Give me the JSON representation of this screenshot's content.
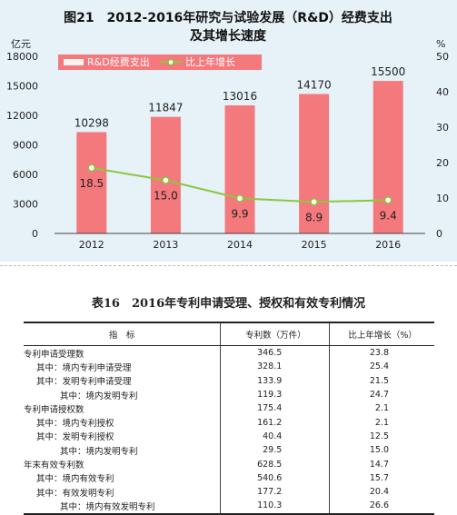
{
  "chart_data": {
    "type": "bar+line",
    "title_line1": "图21　2012-2016年研究与试验发展（R&D）经费支出",
    "title_line2": "及其增长速度",
    "y_left_unit": "亿元",
    "y_right_unit": "%",
    "y_left_ticks": [
      "0",
      "3000",
      "6000",
      "9000",
      "12000",
      "15000",
      "18000"
    ],
    "y_right_ticks": [
      "0",
      "10",
      "20",
      "30",
      "40",
      "50"
    ],
    "ylim_left": [
      0,
      18000
    ],
    "ylim_right": [
      0,
      50
    ],
    "categories": [
      "2012",
      "2013",
      "2014",
      "2015",
      "2016"
    ],
    "series": [
      {
        "name": "R&D经费支出",
        "type": "bar",
        "axis": "left",
        "color": "#f4797d",
        "values": [
          10298,
          11847,
          13016,
          14170,
          15500
        ],
        "labels": [
          "10298",
          "11847",
          "13016",
          "14170",
          "15500"
        ]
      },
      {
        "name": "比上年增长",
        "type": "line",
        "axis": "right",
        "color": "#8cc63f",
        "values": [
          18.5,
          15.0,
          9.9,
          8.9,
          9.4
        ],
        "labels": [
          "18.5",
          "15.0",
          "9.9",
          "8.9",
          "9.4"
        ]
      }
    ],
    "legend_position": "top-left"
  },
  "table": {
    "title": "表16　2016年专利申请受理、授权和有效专利情况",
    "headers": [
      "指　标",
      "专利数（万件）",
      "比上年增长（%）"
    ],
    "rows": [
      {
        "label": "专利申请受理数",
        "indent": 0,
        "count": "346.5",
        "growth": "23.8"
      },
      {
        "label": "其中：境内专利申请受理",
        "indent": 1,
        "count": "328.1",
        "growth": "25.4"
      },
      {
        "label": "其中：发明专利申请受理",
        "indent": 1,
        "count": "133.9",
        "growth": "21.5"
      },
      {
        "label": "其中：境内发明专利",
        "indent": 2,
        "count": "119.3",
        "growth": "24.7"
      },
      {
        "label": "专利申请授权数",
        "indent": 0,
        "count": "175.4",
        "growth": "2.1"
      },
      {
        "label": "其中：境内专利授权",
        "indent": 1,
        "count": "161.2",
        "growth": "2.1"
      },
      {
        "label": "其中：发明专利授权",
        "indent": 1,
        "count": "40.4",
        "growth": "12.5"
      },
      {
        "label": "其中：境内发明专利",
        "indent": 2,
        "count": "29.5",
        "growth": "15.0"
      },
      {
        "label": "年末有效专利数",
        "indent": 0,
        "count": "628.5",
        "growth": "14.7"
      },
      {
        "label": "其中：境内有效专利",
        "indent": 1,
        "count": "540.6",
        "growth": "15.7"
      },
      {
        "label": "其中：有效发明专利",
        "indent": 1,
        "count": "177.2",
        "growth": "20.4"
      },
      {
        "label": "其中：境内有效发明专利",
        "indent": 2,
        "count": "110.3",
        "growth": "26.6"
      }
    ]
  }
}
